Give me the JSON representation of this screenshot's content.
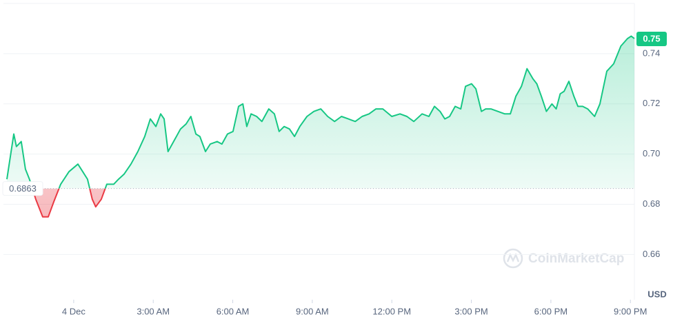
{
  "chart_data": {
    "type": "line",
    "x": [
      -2.52,
      -2.26,
      -2.16,
      -1.98,
      -1.82,
      -1.67,
      -1.43,
      -1.17,
      -0.96,
      -0.75,
      -0.49,
      -0.18,
      0.16,
      0.34,
      0.52,
      0.7,
      0.83,
      1.04,
      1.25,
      1.51,
      1.69,
      1.9,
      2.16,
      2.42,
      2.68,
      2.89,
      3.1,
      3.28,
      3.41,
      3.56,
      3.77,
      4.03,
      4.24,
      4.42,
      4.61,
      4.76,
      4.97,
      5.15,
      5.41,
      5.59,
      5.8,
      6.01,
      6.22,
      6.38,
      6.53,
      6.69,
      6.9,
      7.1,
      7.36,
      7.57,
      7.75,
      7.94,
      8.14,
      8.33,
      8.53,
      8.8,
      9.06,
      9.32,
      9.58,
      9.84,
      10.1,
      10.36,
      10.62,
      10.88,
      11.14,
      11.4,
      11.66,
      12.0,
      12.31,
      12.57,
      12.83,
      13.14,
      13.4,
      13.61,
      13.82,
      14.0,
      14.18,
      14.39,
      14.6,
      14.78,
      15.01,
      15.17,
      15.38,
      15.54,
      15.74,
      16.0,
      16.26,
      16.47,
      16.68,
      16.89,
      17.1,
      17.32,
      17.47,
      17.64,
      17.83,
      18.04,
      18.2,
      18.35,
      18.5,
      18.68,
      18.87,
      19.02,
      19.2,
      19.39,
      19.65,
      19.85,
      20.11,
      20.37,
      20.64,
      20.89,
      21.03,
      21.15
    ],
    "series": [
      {
        "color": "#16c784",
        "values": [
          0.69,
          0.708,
          0.703,
          0.705,
          0.694,
          0.69,
          0.682,
          0.675,
          0.675,
          0.681,
          0.688,
          0.693,
          0.696,
          0.693,
          0.69,
          0.682,
          0.679,
          0.682,
          0.688,
          0.688,
          0.69,
          0.692,
          0.696,
          0.701,
          0.707,
          0.714,
          0.711,
          0.716,
          0.714,
          0.701,
          0.705,
          0.71,
          0.712,
          0.715,
          0.708,
          0.707,
          0.701,
          0.704,
          0.705,
          0.704,
          0.708,
          0.709,
          0.719,
          0.72,
          0.711,
          0.716,
          0.715,
          0.713,
          0.718,
          0.716,
          0.709,
          0.711,
          0.71,
          0.707,
          0.711,
          0.715,
          0.717,
          0.718,
          0.715,
          0.713,
          0.715,
          0.714,
          0.713,
          0.715,
          0.716,
          0.718,
          0.718,
          0.715,
          0.716,
          0.715,
          0.713,
          0.716,
          0.715,
          0.719,
          0.717,
          0.714,
          0.715,
          0.719,
          0.718,
          0.727,
          0.728,
          0.726,
          0.717,
          0.718,
          0.718,
          0.717,
          0.716,
          0.716,
          0.723,
          0.727,
          0.734,
          0.73,
          0.728,
          0.723,
          0.717,
          0.72,
          0.718,
          0.724,
          0.725,
          0.729,
          0.723,
          0.719,
          0.719,
          0.718,
          0.715,
          0.72,
          0.733,
          0.736,
          0.743,
          0.746,
          0.747,
          0.746
        ]
      }
    ],
    "below_color": "#ea3943",
    "baseline": 0.6863,
    "current_price": 0.75,
    "xlim": [
      -2.65,
      21.15
    ],
    "xticks": [
      {
        "value": 0,
        "label": "4 Dec"
      },
      {
        "value": 3,
        "label": "3:00 AM"
      },
      {
        "value": 6,
        "label": "6:00 AM"
      },
      {
        "value": 9,
        "label": "9:00 AM"
      },
      {
        "value": 12,
        "label": "12:00 PM"
      },
      {
        "value": 15,
        "label": "3:00 PM"
      },
      {
        "value": 18,
        "label": "6:00 PM"
      },
      {
        "value": 21,
        "label": "9:00 PM"
      }
    ],
    "ylim": [
      0.642,
      0.76
    ],
    "yticks": [
      0.66,
      0.68,
      {
        "value": 0.7,
        "label": "0.70"
      },
      0.72,
      0.74
    ],
    "y_unit": "USD",
    "watermark": "CoinMarketCap",
    "grid": true
  }
}
